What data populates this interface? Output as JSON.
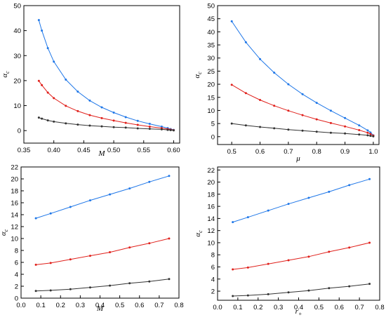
{
  "chart_data": [
    {
      "type": "line",
      "xlabel": "M",
      "ylabel_main": "α",
      "ylabel_sub": "c",
      "xlim": [
        0.35,
        0.61
      ],
      "ylim": [
        -5,
        50
      ],
      "xticks": [
        0.35,
        0.4,
        0.45,
        0.5,
        0.55,
        0.6
      ],
      "xtick_labels": [
        "0.35",
        "0.40",
        "0.45",
        "0.50",
        "0.55",
        "0.60"
      ],
      "yticks": [
        0,
        10,
        20,
        30,
        40,
        50
      ],
      "ytick_labels": [
        "0",
        "10",
        "20",
        "30",
        "40",
        "50"
      ],
      "grid": false,
      "series": [
        {
          "color": "#1f77e8",
          "x": [
            0.375,
            0.38,
            0.39,
            0.4,
            0.42,
            0.44,
            0.46,
            0.48,
            0.5,
            0.52,
            0.54,
            0.56,
            0.58,
            0.59,
            0.595,
            0.6
          ],
          "y": [
            44.2,
            40.0,
            33.0,
            27.6,
            20.4,
            15.6,
            12.0,
            9.3,
            7.2,
            5.4,
            3.9,
            2.7,
            1.6,
            1.0,
            0.6,
            0.3
          ]
        },
        {
          "color": "#e0201b",
          "x": [
            0.375,
            0.38,
            0.39,
            0.4,
            0.42,
            0.44,
            0.46,
            0.48,
            0.5,
            0.52,
            0.54,
            0.56,
            0.58,
            0.59,
            0.595,
            0.6
          ],
          "y": [
            19.9,
            18.2,
            15.2,
            13.0,
            9.9,
            7.8,
            6.2,
            5.0,
            4.0,
            3.1,
            2.3,
            1.6,
            1.0,
            0.6,
            0.4,
            0.2
          ]
        },
        {
          "color": "#333333",
          "x": [
            0.375,
            0.38,
            0.39,
            0.4,
            0.42,
            0.44,
            0.46,
            0.48,
            0.5,
            0.52,
            0.54,
            0.56,
            0.58,
            0.59,
            0.595,
            0.6
          ],
          "y": [
            5.2,
            4.8,
            4.1,
            3.6,
            2.9,
            2.4,
            2.0,
            1.7,
            1.4,
            1.2,
            0.9,
            0.7,
            0.5,
            0.3,
            0.2,
            0.1
          ]
        }
      ]
    },
    {
      "type": "line",
      "xlabel": "μ",
      "ylabel_main": "α",
      "ylabel_sub": "c",
      "xlim": [
        0.45,
        1.02
      ],
      "ylim": [
        -3,
        50
      ],
      "xticks": [
        0.5,
        0.6,
        0.7,
        0.8,
        0.9,
        1.0
      ],
      "xtick_labels": [
        "0.5",
        "0.6",
        "0.7",
        "0.8",
        "0.9",
        "1.0"
      ],
      "yticks": [
        0,
        5,
        10,
        15,
        20,
        25,
        30,
        35,
        40,
        45,
        50
      ],
      "ytick_labels": [
        "0",
        "5",
        "10",
        "15",
        "20",
        "25",
        "30",
        "35",
        "40",
        "45",
        "50"
      ],
      "grid": false,
      "series": [
        {
          "color": "#1f77e8",
          "x": [
            0.5,
            0.55,
            0.6,
            0.65,
            0.7,
            0.75,
            0.8,
            0.85,
            0.9,
            0.95,
            0.98,
            0.99,
            1.0
          ],
          "y": [
            44.0,
            36.0,
            29.6,
            24.4,
            20.0,
            16.2,
            12.9,
            9.9,
            7.1,
            4.3,
            2.4,
            1.6,
            0.5
          ]
        },
        {
          "color": "#e0201b",
          "x": [
            0.5,
            0.55,
            0.6,
            0.65,
            0.7,
            0.75,
            0.8,
            0.85,
            0.9,
            0.95,
            0.98,
            0.99,
            1.0
          ],
          "y": [
            19.8,
            16.6,
            14.0,
            11.8,
            9.9,
            8.2,
            6.6,
            5.2,
            3.9,
            2.5,
            1.5,
            1.0,
            0.4
          ]
        },
        {
          "color": "#333333",
          "x": [
            0.5,
            0.55,
            0.6,
            0.65,
            0.7,
            0.75,
            0.8,
            0.85,
            0.9,
            0.95,
            0.98,
            0.99,
            1.0
          ],
          "y": [
            5.0,
            4.3,
            3.7,
            3.2,
            2.7,
            2.3,
            1.9,
            1.5,
            1.2,
            0.8,
            0.5,
            0.3,
            0.1
          ]
        }
      ]
    },
    {
      "type": "line",
      "xlabel": "M",
      "ylabel_main": "α",
      "ylabel_sub": "c",
      "xlim": [
        0.0,
        0.8
      ],
      "ylim": [
        0,
        22
      ],
      "xticks": [
        0.0,
        0.1,
        0.2,
        0.3,
        0.4,
        0.5,
        0.6,
        0.7,
        0.8
      ],
      "xtick_labels": [
        "0.0",
        "0.1",
        "0.2",
        "0.3",
        "0.4",
        "0.5",
        "0.6",
        "0.7",
        "0.8"
      ],
      "yticks": [
        0,
        2,
        4,
        6,
        8,
        10,
        12,
        14,
        16,
        18,
        20,
        22
      ],
      "ytick_labels": [
        "0",
        "2",
        "4",
        "6",
        "8",
        "10",
        "12",
        "14",
        "16",
        "18",
        "20",
        "22"
      ],
      "grid": false,
      "series": [
        {
          "color": "#1f77e8",
          "x": [
            0.075,
            0.15,
            0.25,
            0.35,
            0.45,
            0.55,
            0.65,
            0.75
          ],
          "y": [
            13.4,
            14.2,
            15.3,
            16.4,
            17.4,
            18.4,
            19.5,
            20.5
          ]
        },
        {
          "color": "#e0201b",
          "x": [
            0.075,
            0.15,
            0.25,
            0.35,
            0.45,
            0.55,
            0.65,
            0.75
          ],
          "y": [
            5.6,
            5.9,
            6.5,
            7.1,
            7.7,
            8.5,
            9.2,
            10.0
          ]
        },
        {
          "color": "#333333",
          "x": [
            0.075,
            0.15,
            0.25,
            0.35,
            0.45,
            0.55,
            0.65,
            0.75
          ],
          "y": [
            1.2,
            1.3,
            1.5,
            1.8,
            2.1,
            2.5,
            2.8,
            3.2
          ]
        }
      ]
    },
    {
      "type": "line",
      "xlabel_main": "r",
      "xlabel_sub": "+",
      "ylabel_main": "α",
      "ylabel_sub": "c",
      "xlim": [
        0.0,
        0.8
      ],
      "ylim": [
        0.5,
        22.5
      ],
      "xticks": [
        0.0,
        0.1,
        0.2,
        0.3,
        0.4,
        0.5,
        0.6,
        0.7,
        0.8
      ],
      "xtick_labels": [
        "0.0",
        "0.1",
        "0.2",
        "0.3",
        "0.4",
        "0.5",
        "0.6",
        "0.7",
        "0.8"
      ],
      "yticks": [
        2,
        4,
        6,
        8,
        10,
        12,
        14,
        16,
        18,
        20,
        22
      ],
      "ytick_labels": [
        "2",
        "4",
        "6",
        "8",
        "10",
        "12",
        "14",
        "16",
        "18",
        "20",
        "22"
      ],
      "grid": false,
      "series": [
        {
          "color": "#1f77e8",
          "x": [
            0.075,
            0.15,
            0.25,
            0.35,
            0.45,
            0.55,
            0.65,
            0.75
          ],
          "y": [
            13.4,
            14.2,
            15.3,
            16.4,
            17.4,
            18.4,
            19.5,
            20.5
          ]
        },
        {
          "color": "#e0201b",
          "x": [
            0.075,
            0.15,
            0.25,
            0.35,
            0.45,
            0.55,
            0.65,
            0.75
          ],
          "y": [
            5.6,
            5.9,
            6.5,
            7.1,
            7.7,
            8.5,
            9.2,
            10.0
          ]
        },
        {
          "color": "#333333",
          "x": [
            0.075,
            0.15,
            0.25,
            0.35,
            0.45,
            0.55,
            0.65,
            0.75
          ],
          "y": [
            1.2,
            1.3,
            1.5,
            1.8,
            2.1,
            2.5,
            2.8,
            3.2
          ]
        }
      ]
    }
  ]
}
